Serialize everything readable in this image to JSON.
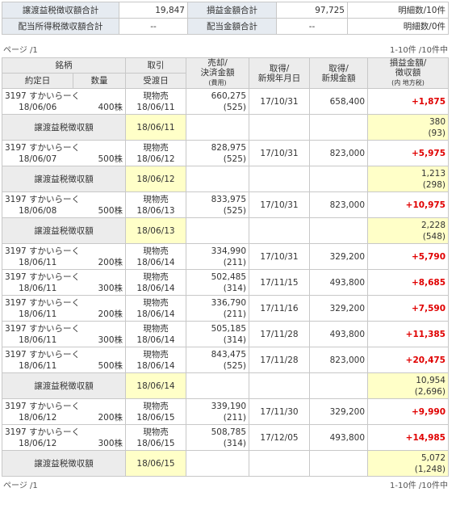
{
  "summary": {
    "rows": [
      [
        "譲渡益税徴収額合計",
        "19,847",
        "損益金額合計",
        "97,725",
        "明細数/10件"
      ],
      [
        "配当所得税徴収額合計",
        "--",
        "配当金額合計",
        "--",
        "明細数/0件"
      ]
    ]
  },
  "pager_top": {
    "page": "ページ /1",
    "count": "1-10件 /10件中"
  },
  "header": {
    "stock": "銘柄",
    "trade": "取引",
    "sale_1": "売却/",
    "sale_2": "決済金額",
    "sale_3": "(費用)",
    "acq_date_1": "取得/",
    "acq_date_2": "新規年月日",
    "acq_amt_1": "取得/",
    "acq_amt_2": "新規金額",
    "pl_1": "損益金額/",
    "pl_2": "徴収額",
    "pl_3": "(内 地方税)",
    "exec_date": "約定日",
    "qty": "数量",
    "settle": "受渡日"
  },
  "groups": [
    {
      "trades": [
        {
          "name": "3197 すかいらーく",
          "date": "18/06/06",
          "qty": "400株",
          "kind": "現物売",
          "settle": "18/06/11",
          "amount": "660,275",
          "fee": "(525)",
          "acq_date": "17/10/31",
          "acq_amount": "658,400",
          "pl": "+1,875"
        }
      ],
      "tax": {
        "label": "譲渡益税徴収額",
        "date": "18/06/11",
        "amount": "380",
        "local": "(93)"
      }
    },
    {
      "trades": [
        {
          "name": "3197 すかいらーく",
          "date": "18/06/07",
          "qty": "500株",
          "kind": "現物売",
          "settle": "18/06/12",
          "amount": "828,975",
          "fee": "(525)",
          "acq_date": "17/10/31",
          "acq_amount": "823,000",
          "pl": "+5,975"
        }
      ],
      "tax": {
        "label": "譲渡益税徴収額",
        "date": "18/06/12",
        "amount": "1,213",
        "local": "(298)"
      }
    },
    {
      "trades": [
        {
          "name": "3197 すかいらーく",
          "date": "18/06/08",
          "qty": "500株",
          "kind": "現物売",
          "settle": "18/06/13",
          "amount": "833,975",
          "fee": "(525)",
          "acq_date": "17/10/31",
          "acq_amount": "823,000",
          "pl": "+10,975"
        }
      ],
      "tax": {
        "label": "譲渡益税徴収額",
        "date": "18/06/13",
        "amount": "2,228",
        "local": "(548)"
      }
    },
    {
      "trades": [
        {
          "name": "3197 すかいらーく",
          "date": "18/06/11",
          "qty": "200株",
          "kind": "現物売",
          "settle": "18/06/14",
          "amount": "334,990",
          "fee": "(211)",
          "acq_date": "17/10/31",
          "acq_amount": "329,200",
          "pl": "+5,790"
        },
        {
          "name": "3197 すかいらーく",
          "date": "18/06/11",
          "qty": "300株",
          "kind": "現物売",
          "settle": "18/06/14",
          "amount": "502,485",
          "fee": "(314)",
          "acq_date": "17/11/15",
          "acq_amount": "493,800",
          "pl": "+8,685"
        },
        {
          "name": "3197 すかいらーく",
          "date": "18/06/11",
          "qty": "200株",
          "kind": "現物売",
          "settle": "18/06/14",
          "amount": "336,790",
          "fee": "(211)",
          "acq_date": "17/11/16",
          "acq_amount": "329,200",
          "pl": "+7,590"
        },
        {
          "name": "3197 すかいらーく",
          "date": "18/06/11",
          "qty": "300株",
          "kind": "現物売",
          "settle": "18/06/14",
          "amount": "505,185",
          "fee": "(314)",
          "acq_date": "17/11/28",
          "acq_amount": "493,800",
          "pl": "+11,385"
        },
        {
          "name": "3197 すかいらーく",
          "date": "18/06/11",
          "qty": "500株",
          "kind": "現物売",
          "settle": "18/06/14",
          "amount": "843,475",
          "fee": "(525)",
          "acq_date": "17/11/28",
          "acq_amount": "823,000",
          "pl": "+20,475"
        }
      ],
      "tax": {
        "label": "譲渡益税徴収額",
        "date": "18/06/14",
        "amount": "10,954",
        "local": "(2,696)"
      }
    },
    {
      "trades": [
        {
          "name": "3197 すかいらーく",
          "date": "18/06/12",
          "qty": "200株",
          "kind": "現物売",
          "settle": "18/06/15",
          "amount": "339,190",
          "fee": "(211)",
          "acq_date": "17/11/30",
          "acq_amount": "329,200",
          "pl": "+9,990"
        },
        {
          "name": "3197 すかいらーく",
          "date": "18/06/12",
          "qty": "300株",
          "kind": "現物売",
          "settle": "18/06/15",
          "amount": "508,785",
          "fee": "(314)",
          "acq_date": "17/12/05",
          "acq_amount": "493,800",
          "pl": "+14,985"
        }
      ],
      "tax": {
        "label": "譲渡益税徴収額",
        "date": "18/06/15",
        "amount": "5,072",
        "local": "(1,248)"
      }
    }
  ],
  "pager_bottom": {
    "page": "ページ /1",
    "count": "1-10件 /10件中"
  }
}
